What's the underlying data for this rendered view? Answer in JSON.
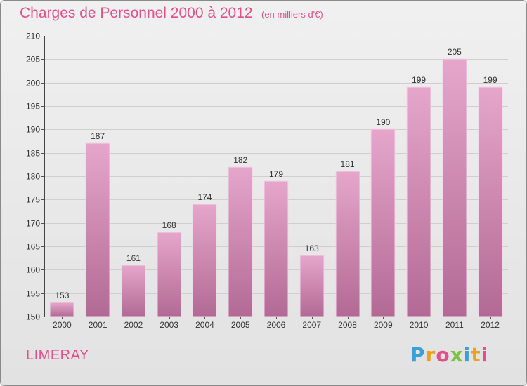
{
  "header": {
    "title": "Charges de Personnel 2000 à 2012",
    "subtitle": "(en milliers d'€)"
  },
  "footer": {
    "town": "LIMERAY",
    "logo_text": "Proxiti"
  },
  "colors": {
    "title": "#e0508a",
    "bar_top": "#e6a6cb",
    "bar_bottom": "#b26a94",
    "bar_edge": "#f2d6e6",
    "axis": "#333333"
  },
  "chart_data": {
    "type": "bar",
    "title": "Charges de Personnel 2000 à 2012",
    "subtitle": "(en milliers d'€)",
    "categories": [
      "2000",
      "2001",
      "2002",
      "2003",
      "2004",
      "2005",
      "2006",
      "2007",
      "2008",
      "2009",
      "2010",
      "2011",
      "2012"
    ],
    "values": [
      153,
      187,
      161,
      168,
      174,
      182,
      179,
      163,
      181,
      190,
      199,
      205,
      199
    ],
    "ylim": [
      150,
      210
    ],
    "yticks": [
      150,
      155,
      160,
      165,
      170,
      175,
      180,
      185,
      190,
      195,
      200,
      205,
      210
    ],
    "grid": true,
    "legend": "none"
  }
}
